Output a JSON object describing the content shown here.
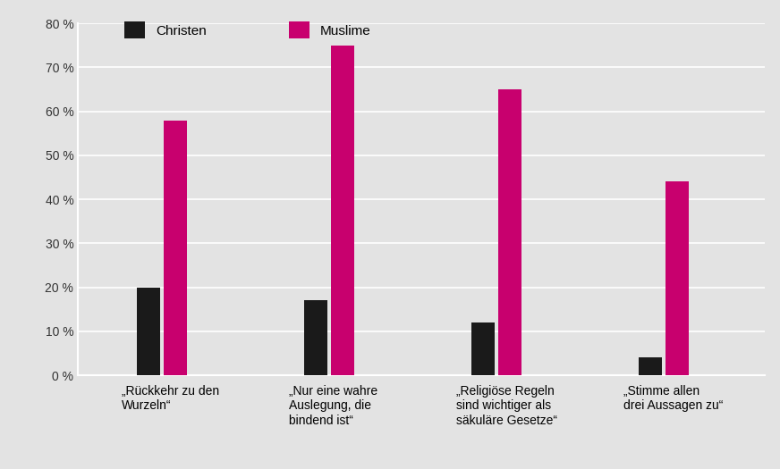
{
  "chart_data": {
    "type": "bar",
    "categories": [
      "„Rückkehr zu den\nWurzeln“",
      "„Nur eine wahre\nAuslegung, die\nbindend ist“",
      "„Religiöse Regeln\nsind wichtiger als\nsäkuläre Gesetze“",
      "„Stimme allen\ndrei Aussagen zu“"
    ],
    "series": [
      {
        "name": "Christen",
        "color": "#1a1a1a",
        "values": [
          20,
          17,
          12,
          4
        ]
      },
      {
        "name": "Muslime",
        "color": "#c8006e",
        "values": [
          58,
          75,
          65,
          44
        ]
      }
    ],
    "ylim": [
      0,
      80
    ],
    "yticks": [
      {
        "value": 0,
        "label": "0 %"
      },
      {
        "value": 10,
        "label": "10 %"
      },
      {
        "value": 20,
        "label": "20 %"
      },
      {
        "value": 30,
        "label": "30 %"
      },
      {
        "value": 40,
        "label": "40 %"
      },
      {
        "value": 50,
        "label": "50 %"
      },
      {
        "value": 60,
        "label": "60 %"
      },
      {
        "value": 70,
        "label": "70 %"
      },
      {
        "value": 80,
        "label": "80 %"
      }
    ],
    "grid": true,
    "legend": "upper left"
  }
}
